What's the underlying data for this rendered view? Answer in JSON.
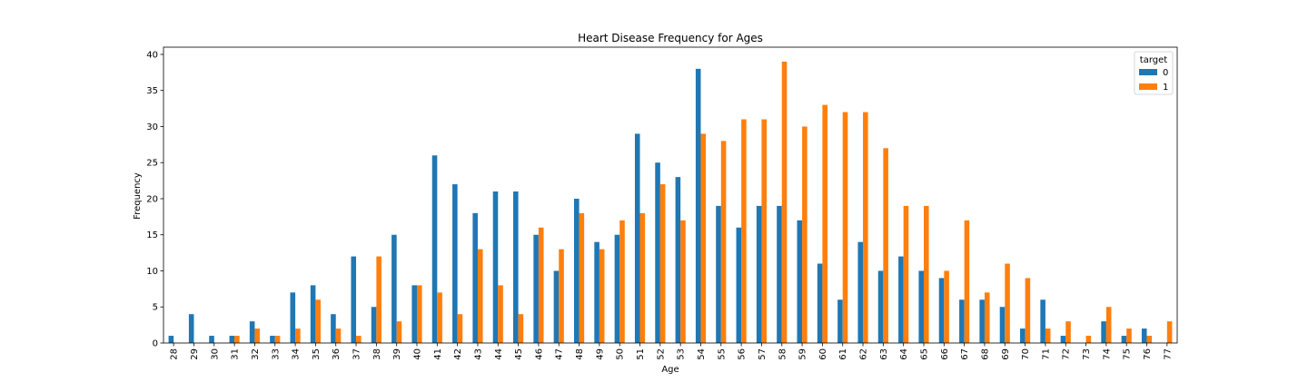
{
  "chart_data": {
    "type": "bar",
    "title": "Heart Disease Frequency for Ages",
    "xlabel": "Age",
    "ylabel": "Frequency",
    "ylim": [
      0,
      41
    ],
    "yticks": [
      0,
      5,
      10,
      15,
      20,
      25,
      30,
      35,
      40
    ],
    "grid": false,
    "legend": {
      "title": "target",
      "placement": "top-right"
    },
    "categories": [
      "28",
      "29",
      "30",
      "31",
      "32",
      "33",
      "34",
      "35",
      "36",
      "37",
      "38",
      "39",
      "40",
      "41",
      "42",
      "43",
      "44",
      "45",
      "46",
      "47",
      "48",
      "49",
      "50",
      "51",
      "52",
      "53",
      "54",
      "55",
      "56",
      "57",
      "58",
      "59",
      "60",
      "61",
      "62",
      "63",
      "64",
      "65",
      "66",
      "67",
      "68",
      "69",
      "70",
      "71",
      "72",
      "73",
      "74",
      "75",
      "76",
      "77"
    ],
    "series": [
      {
        "name": "0",
        "color": "#1f77b4",
        "values": [
          1,
          4,
          1,
          1,
          3,
          1,
          7,
          8,
          4,
          12,
          5,
          15,
          8,
          26,
          22,
          18,
          21,
          21,
          15,
          10,
          20,
          14,
          15,
          29,
          25,
          23,
          38,
          19,
          16,
          19,
          19,
          17,
          11,
          6,
          14,
          10,
          12,
          10,
          9,
          6,
          6,
          5,
          2,
          6,
          1,
          0,
          3,
          1,
          2,
          0
        ]
      },
      {
        "name": "1",
        "color": "#ff7f0e",
        "values": [
          0,
          0,
          0,
          1,
          2,
          1,
          2,
          6,
          2,
          1,
          12,
          3,
          8,
          7,
          4,
          13,
          8,
          4,
          16,
          13,
          18,
          13,
          17,
          18,
          22,
          17,
          29,
          28,
          31,
          31,
          39,
          30,
          33,
          32,
          32,
          27,
          19,
          19,
          10,
          17,
          7,
          11,
          9,
          2,
          3,
          1,
          5,
          2,
          1,
          3
        ]
      }
    ]
  }
}
